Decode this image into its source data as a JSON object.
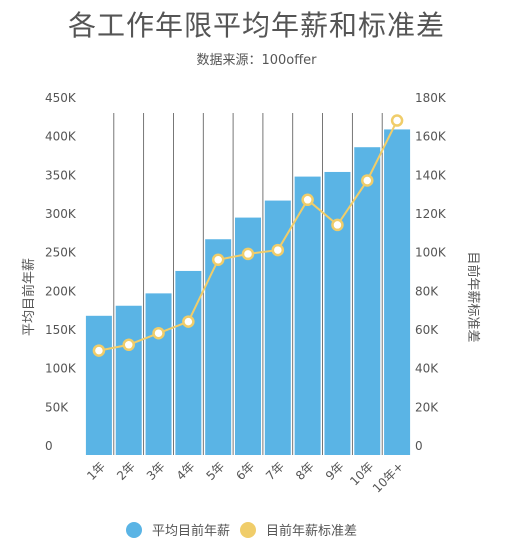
{
  "chart_data": {
    "type": "bar",
    "title": "各工作年限平均年薪和标准差",
    "subtitle": "数据来源：100offer",
    "categories": [
      "1年",
      "2年",
      "3年",
      "4年",
      "5年",
      "6年",
      "7年",
      "8年",
      "9年",
      "10年",
      "10年+"
    ],
    "series": [
      {
        "name": "平均目前年薪",
        "type": "bar",
        "axis": "left",
        "color": "#5ab4e5",
        "values": [
          180000,
          193000,
          209000,
          238000,
          279000,
          307000,
          329000,
          360000,
          366000,
          398000,
          421000
        ]
      },
      {
        "name": "目前年薪标准差",
        "type": "line",
        "axis": "right",
        "color": "#f0cd6a",
        "values": [
          54000,
          57000,
          63000,
          69000,
          101000,
          104000,
          106000,
          132000,
          119000,
          142000,
          173000
        ]
      }
    ],
    "y_left": {
      "label": "平均目前年薪",
      "ylim": [
        0,
        450000
      ],
      "ticks": [
        "0",
        "50K",
        "100K",
        "150K",
        "200K",
        "250K",
        "300K",
        "350K",
        "400K",
        "450K"
      ]
    },
    "y_right": {
      "label": "目前年薪标准差",
      "ylim": [
        0,
        180000
      ],
      "ticks": [
        "0",
        "20K",
        "40K",
        "60K",
        "80K",
        "100K",
        "120K",
        "140K",
        "160K",
        "180K"
      ]
    },
    "grid": "vertical",
    "legend_position": "bottom",
    "colors": {
      "axis_text": "#555555",
      "grid": "#555555",
      "marker_fill": "#ffffff"
    }
  }
}
